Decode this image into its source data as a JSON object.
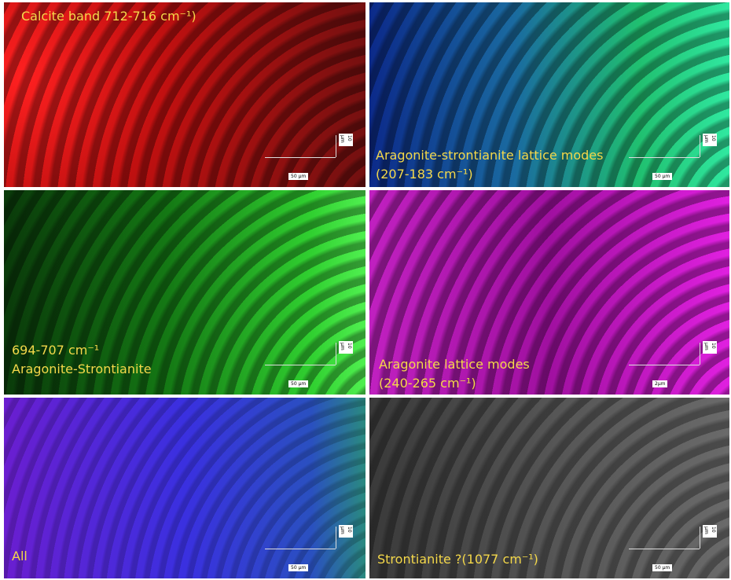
{
  "panels": [
    {
      "label": [
        "Calcite band 712-716 cm⁻¹)"
      ],
      "scale_x": "50 µm",
      "scale_y": "10 µm"
    },
    {
      "label": [
        "Aragonite-strontianite lattice modes",
        "(207-183 cm⁻¹)"
      ],
      "scale_x": "50 µm",
      "scale_y": "10 µm"
    },
    {
      "label": [
        "694-707 cm⁻¹",
        "Aragonite-Strontianite"
      ],
      "scale_x": "50 µm",
      "scale_y": "10 µm"
    },
    {
      "label": [
        "Aragonite lattice modes",
        "(240-265 cm⁻¹)"
      ],
      "scale_x": "2µm",
      "scale_y": "10 µm"
    },
    {
      "label": [
        "All"
      ],
      "scale_x": "50 µm",
      "scale_y": "10 µm"
    },
    {
      "label": [
        "Strontianite ?(1077 cm⁻¹)"
      ],
      "scale_x": "50 µm",
      "scale_y": "10 µm"
    }
  ]
}
